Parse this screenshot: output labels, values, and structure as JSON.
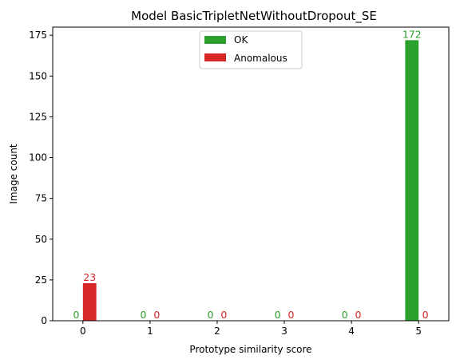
{
  "chart_data": {
    "type": "bar",
    "title": "Model BasicTripletNetWithoutDropout_SE",
    "xlabel": "Prototype similarity score",
    "ylabel": "Image count",
    "categories": [
      "0",
      "1",
      "2",
      "3",
      "4",
      "5"
    ],
    "series": [
      {
        "name": "OK",
        "values": [
          0,
          0,
          0,
          0,
          0,
          172
        ],
        "color": "#2ca02c"
      },
      {
        "name": "Anomalous",
        "values": [
          23,
          0,
          0,
          0,
          0,
          0
        ],
        "color": "#d62728"
      }
    ],
    "data_labels": {
      "OK": [
        "0",
        "0",
        "0",
        "0",
        "0",
        "172"
      ],
      "Anomalous": [
        "23",
        "0",
        "0",
        "0",
        "0",
        "0"
      ]
    },
    "ylim": [
      0,
      180
    ],
    "yticks": [
      0,
      25,
      50,
      75,
      100,
      125,
      150,
      175
    ],
    "ytick_labels": [
      "0",
      "25",
      "50",
      "75",
      "100",
      "125",
      "150",
      "175"
    ],
    "xlim": [
      -0.45,
      5.45
    ],
    "grid": false,
    "legend_position": "top-center"
  }
}
